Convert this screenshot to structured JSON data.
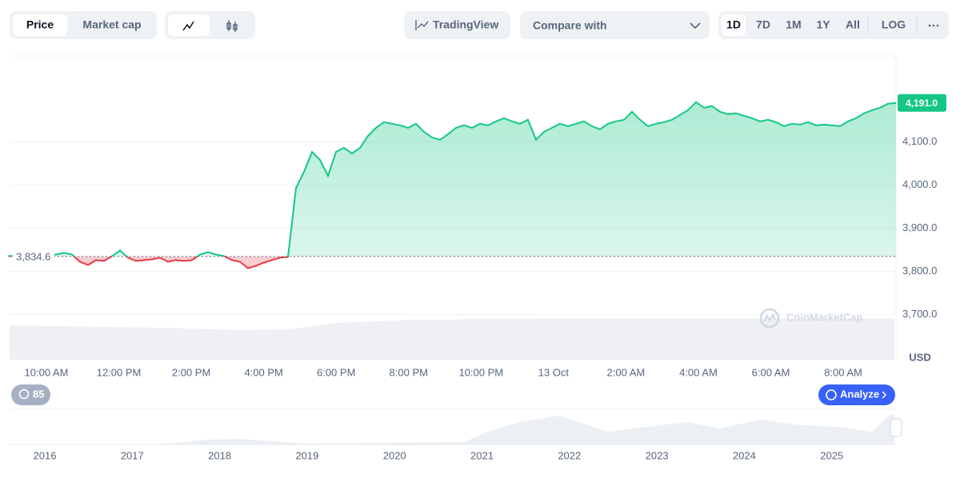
{
  "ui": {
    "tabs": [
      "Price",
      "Market cap"
    ],
    "tradingview": "TradingView",
    "compare": "Compare with",
    "ranges": [
      "1D",
      "7D",
      "1M",
      "1Y",
      "All"
    ],
    "log": "LOG",
    "history_count": 85,
    "analyze": "Analyze",
    "watermark": "CoinMarketCap"
  },
  "chart_data": {
    "type": "line",
    "series": [
      {
        "color": "#16c784",
        "values": [
          3835.4,
          3836,
          3836,
          3836,
          3836,
          3836,
          3839.1,
          3842.8,
          3839.1,
          3822.3,
          3814.9,
          3826.1,
          3824.2,
          3835.4,
          3848.4,
          3831.7,
          3824.2,
          3826.1,
          3827.9,
          3831.7,
          3822.3,
          3826.1,
          3824.2,
          3826.1,
          3839.1,
          3844.7,
          3839.1,
          3835.4,
          3826.1,
          3822.3,
          3807.4,
          3813.0,
          3820.5,
          3826.1,
          3831.7,
          3833.5,
          3993.6,
          4030.9,
          4077.4,
          4058.8,
          4021.6,
          4077.4,
          4086.7,
          4073.7,
          4086.7,
          4114.7,
          4133.3,
          4146.3,
          4142.6,
          4138.9,
          4133.3,
          4142.6,
          4124.0,
          4111.0,
          4105.4,
          4118.4,
          4133.3,
          4138.9,
          4133.3,
          4142.6,
          4138.9,
          4148.2,
          4155.6,
          4148.2,
          4142.6,
          4151.9,
          4105.4,
          4124.0,
          4133.3,
          4142.6,
          4137.0,
          4142.6,
          4148.2,
          4137.0,
          4129.6,
          4142.6,
          4148.2,
          4151.9,
          4170.5,
          4151.9,
          4137.0,
          4142.6,
          4146.3,
          4151.9,
          4163.1,
          4174.3,
          4192.9,
          4179.8,
          4183.6,
          4170.5,
          4164.9,
          4166.8,
          4161.2,
          4155.6,
          4148.2,
          4151.9,
          4146.3,
          4137.0,
          4142.6,
          4140.7,
          4146.3,
          4138.9,
          4140.7,
          4138.9,
          4137.0,
          4148.2,
          4155.6,
          4166.8,
          4174.3,
          4179.8,
          4189.2,
          4191.0
        ]
      }
    ],
    "down_color": "#ea3943",
    "reference": {
      "value": 3834.6,
      "label": "3,834.6"
    },
    "current": {
      "value": 4191.0,
      "label": "4,191.0"
    },
    "ylim": [
      3595,
      4300
    ],
    "yticks": [
      {
        "value": 3700,
        "label": "3,700.0"
      },
      {
        "value": 3800,
        "label": "3,800.0"
      },
      {
        "value": 3900,
        "label": "3,900.0"
      },
      {
        "value": 4000,
        "label": "4,000.0"
      },
      {
        "value": 4100,
        "label": "4,100.0"
      }
    ],
    "grid": true,
    "y_unit": "USD",
    "x_labels": [
      "10:00 AM",
      "12:00 PM",
      "2:00 PM",
      "4:00 PM",
      "6:00 PM",
      "8:00 PM",
      "10:00 PM",
      "13 Oct",
      "2:00 AM",
      "4:00 AM",
      "6:00 AM",
      "8:00 AM"
    ],
    "navigator_years": [
      "2016",
      "2017",
      "2018",
      "2019",
      "2020",
      "2021",
      "2022",
      "2023",
      "2024",
      "2025"
    ]
  }
}
